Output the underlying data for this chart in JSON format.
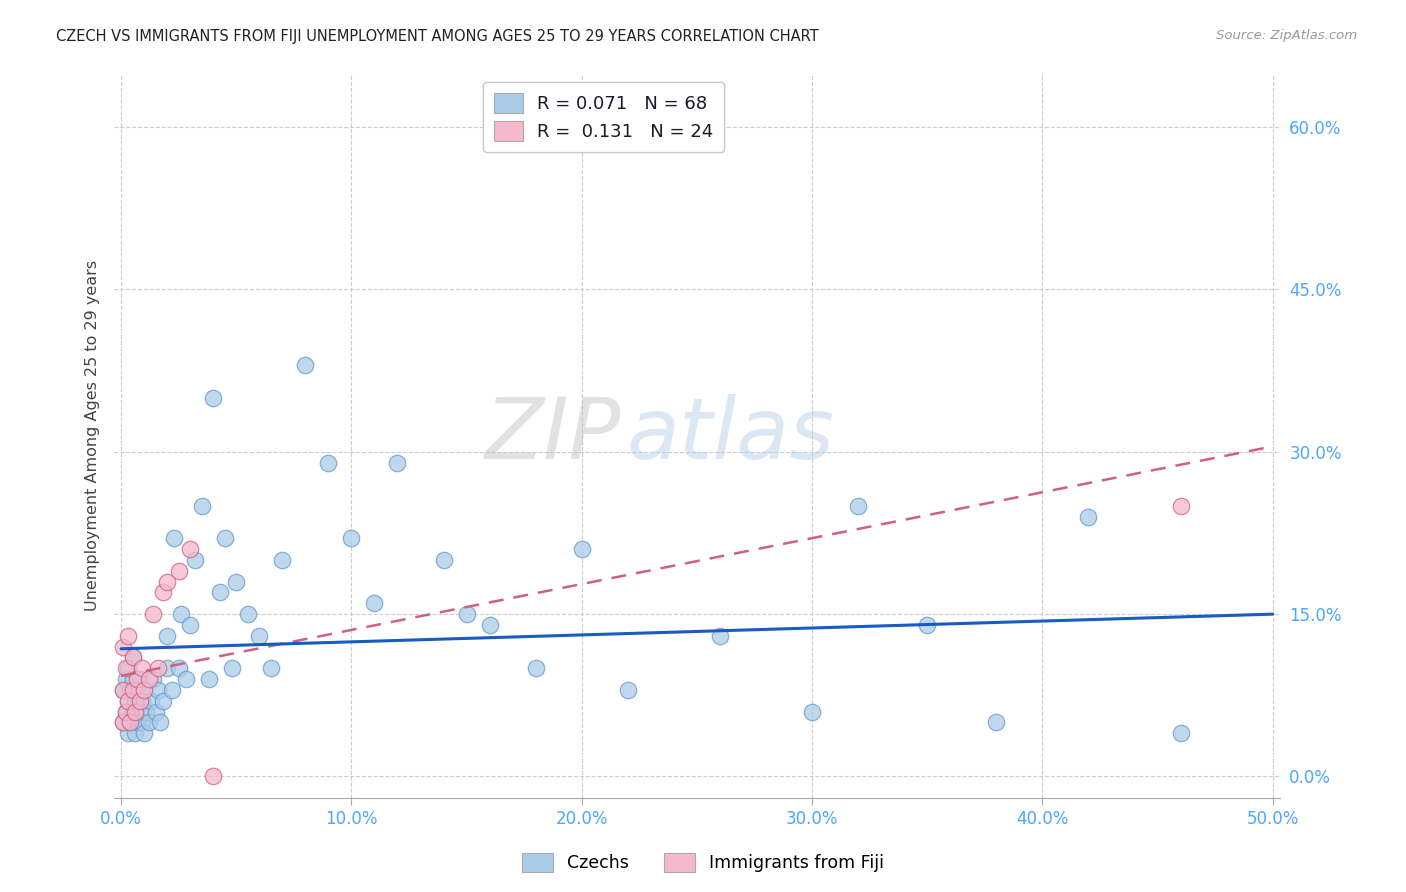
{
  "title": "CZECH VS IMMIGRANTS FROM FIJI UNEMPLOYMENT AMONG AGES 25 TO 29 YEARS CORRELATION CHART",
  "source": "Source: ZipAtlas.com",
  "tick_color": "#4da6ff",
  "ylabel": "Unemployment Among Ages 25 to 29 years",
  "xmin": 0.0,
  "xmax": 0.5,
  "ymin": -0.02,
  "ymax": 0.65,
  "xticks": [
    0.0,
    0.1,
    0.2,
    0.3,
    0.4,
    0.5
  ],
  "xtick_labels": [
    "0.0%",
    "10.0%",
    "20.0%",
    "30.0%",
    "40.0%",
    "50.0%"
  ],
  "yticks": [
    0.0,
    0.15,
    0.3,
    0.45,
    0.6
  ],
  "ytick_labels": [
    "0.0%",
    "15.0%",
    "30.0%",
    "45.0%",
    "60.0%"
  ],
  "grid_color": "#cccccc",
  "watermark_zip": "ZIP",
  "watermark_atlas": "atlas",
  "czech_color": "#aacce8",
  "czech_edge": "#6699cc",
  "fiji_color": "#f5b8cc",
  "fiji_edge": "#d06080",
  "czech_R": "0.071",
  "czech_N": "68",
  "fiji_R": "0.131",
  "fiji_N": "24",
  "legend_label_czech": "Czechs",
  "legend_label_fiji": "Immigrants from Fiji",
  "trendline_czech_color": "#1a5bbf",
  "trendline_fiji_color": "#d06080",
  "czech_x": [
    0.001,
    0.001,
    0.002,
    0.002,
    0.003,
    0.003,
    0.003,
    0.004,
    0.004,
    0.005,
    0.005,
    0.005,
    0.006,
    0.006,
    0.007,
    0.007,
    0.008,
    0.008,
    0.009,
    0.009,
    0.01,
    0.01,
    0.011,
    0.012,
    0.013,
    0.014,
    0.015,
    0.016,
    0.017,
    0.018,
    0.02,
    0.02,
    0.022,
    0.023,
    0.025,
    0.026,
    0.028,
    0.03,
    0.032,
    0.035,
    0.038,
    0.04,
    0.043,
    0.045,
    0.048,
    0.05,
    0.055,
    0.06,
    0.065,
    0.07,
    0.08,
    0.09,
    0.1,
    0.11,
    0.12,
    0.14,
    0.15,
    0.16,
    0.18,
    0.2,
    0.22,
    0.26,
    0.3,
    0.32,
    0.35,
    0.38,
    0.42,
    0.46
  ],
  "czech_y": [
    0.05,
    0.08,
    0.06,
    0.09,
    0.04,
    0.07,
    0.1,
    0.05,
    0.08,
    0.06,
    0.09,
    0.11,
    0.04,
    0.07,
    0.05,
    0.08,
    0.06,
    0.09,
    0.05,
    0.07,
    0.04,
    0.08,
    0.06,
    0.05,
    0.07,
    0.09,
    0.06,
    0.08,
    0.05,
    0.07,
    0.1,
    0.13,
    0.08,
    0.22,
    0.1,
    0.15,
    0.09,
    0.14,
    0.2,
    0.25,
    0.09,
    0.35,
    0.17,
    0.22,
    0.1,
    0.18,
    0.15,
    0.13,
    0.1,
    0.2,
    0.38,
    0.29,
    0.22,
    0.16,
    0.29,
    0.2,
    0.15,
    0.14,
    0.1,
    0.21,
    0.08,
    0.13,
    0.06,
    0.25,
    0.14,
    0.05,
    0.24,
    0.04
  ],
  "fiji_x": [
    0.001,
    0.001,
    0.001,
    0.002,
    0.002,
    0.003,
    0.003,
    0.004,
    0.005,
    0.005,
    0.006,
    0.007,
    0.008,
    0.009,
    0.01,
    0.012,
    0.014,
    0.016,
    0.018,
    0.02,
    0.025,
    0.03,
    0.04,
    0.46
  ],
  "fiji_y": [
    0.05,
    0.08,
    0.12,
    0.06,
    0.1,
    0.07,
    0.13,
    0.05,
    0.08,
    0.11,
    0.06,
    0.09,
    0.07,
    0.1,
    0.08,
    0.09,
    0.15,
    0.1,
    0.17,
    0.18,
    0.19,
    0.21,
    0.0,
    0.25
  ],
  "czech_trend_x": [
    0.0,
    0.5
  ],
  "czech_trend_y": [
    0.118,
    0.15
  ],
  "fiji_trend_x": [
    0.0,
    0.5
  ],
  "fiji_trend_y": [
    0.093,
    0.305
  ]
}
